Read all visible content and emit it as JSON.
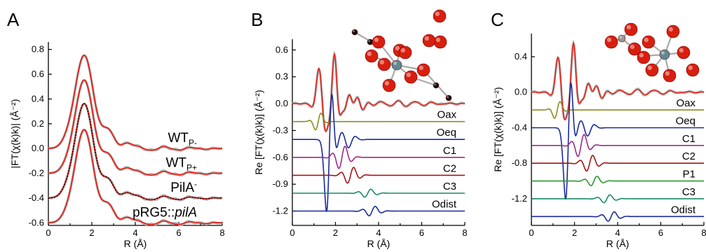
{
  "chart_data": [
    {
      "type": "line",
      "panel_letter": "A",
      "xlabel": "R (Å)",
      "ylabel": "|FT(χ(k)k)| (Å⁻²)",
      "xlim": [
        0,
        8
      ],
      "ylim": [
        -0.62,
        0.86
      ],
      "x_ticks": [
        "0",
        "2",
        "4",
        "6",
        "8"
      ],
      "y_ticks": [
        "-0.6",
        "-0.4",
        "-0.2",
        "0.0",
        "0.2",
        "0.4",
        "0.6",
        "0.8"
      ],
      "colors": {
        "data": "#aaaaaa",
        "fit": "#e8251c",
        "dotted": "#000000"
      },
      "series": [
        {
          "name": "WT",
          "name_sub": "P-",
          "offset": 0.0,
          "peak": 0.75,
          "peak2": 0.1
        },
        {
          "name": "WT",
          "name_sub": "P+",
          "offset": -0.2,
          "peak": 0.75,
          "peak2": 0.1
        },
        {
          "name": "PilA",
          "name_sup": "-",
          "offset": -0.4,
          "peak": 0.76,
          "peak2": 0.12
        },
        {
          "name": "pRG5::",
          "name_italic": "pilA",
          "offset": -0.6,
          "peak": 0.75,
          "peak2": 0.12
        }
      ]
    },
    {
      "type": "line",
      "panel_letter": "B",
      "xlabel": "R (Å)",
      "ylabel": "Re [FT(χ(k)k)] (Å⁻²)",
      "xlim": [
        0,
        8
      ],
      "ylim": [
        -1.36,
        0.72
      ],
      "x_ticks": [
        "0",
        "2",
        "4",
        "6",
        "8"
      ],
      "y_ticks": [
        "-1.2",
        "-0.9",
        "-0.6",
        "-0.3",
        "0.0",
        "0.3",
        "0.6"
      ],
      "series": [
        {
          "name": "",
          "offset": 0.0,
          "color": "#e8251c"
        },
        {
          "name": "Oax",
          "offset": -0.2,
          "color": "#8c8c1e"
        },
        {
          "name": "Oeq",
          "offset": -0.4,
          "color": "#1a2a9a"
        },
        {
          "name": "C1",
          "offset": -0.6,
          "color": "#9c2a8c"
        },
        {
          "name": "C2",
          "offset": -0.8,
          "color": "#a31515"
        },
        {
          "name": "C3",
          "offset": -1.0,
          "color": "#1a8a6a"
        },
        {
          "name": "Odist",
          "offset": -1.2,
          "color": "#1a2a9a"
        }
      ]
    },
    {
      "type": "line",
      "panel_letter": "C",
      "xlabel": "R (Å)",
      "ylabel": "Re [FT(χ(k)k)] (Å⁻²)",
      "xlim": [
        0,
        8
      ],
      "ylim": [
        -1.5,
        0.66
      ],
      "x_ticks": [
        "0",
        "2",
        "4",
        "6",
        "8"
      ],
      "y_ticks": [
        "-1.2",
        "-0.8",
        "-0.4",
        "0.0",
        "0.4"
      ],
      "series": [
        {
          "name": "",
          "offset": 0.0,
          "color": "#e8251c"
        },
        {
          "name": "Oax",
          "offset": -0.2,
          "color": "#8c8c1e"
        },
        {
          "name": "Oeq",
          "offset": -0.4,
          "color": "#1a2a9a"
        },
        {
          "name": "C1",
          "offset": -0.6,
          "color": "#9c2a8c"
        },
        {
          "name": "C2",
          "offset": -0.8,
          "color": "#a31515"
        },
        {
          "name": "P1",
          "offset": -1.0,
          "color": "#2a9a2a"
        },
        {
          "name": "C3",
          "offset": -1.2,
          "color": "#1a8a6a"
        },
        {
          "name": "Odist",
          "offset": -1.4,
          "color": "#1a2a9a"
        }
      ]
    }
  ],
  "molecule_colors": {
    "oxygen": "#d81f0f",
    "uranium": "#5d8a93",
    "carbon": "#111111",
    "phosphorus": "#999999"
  }
}
